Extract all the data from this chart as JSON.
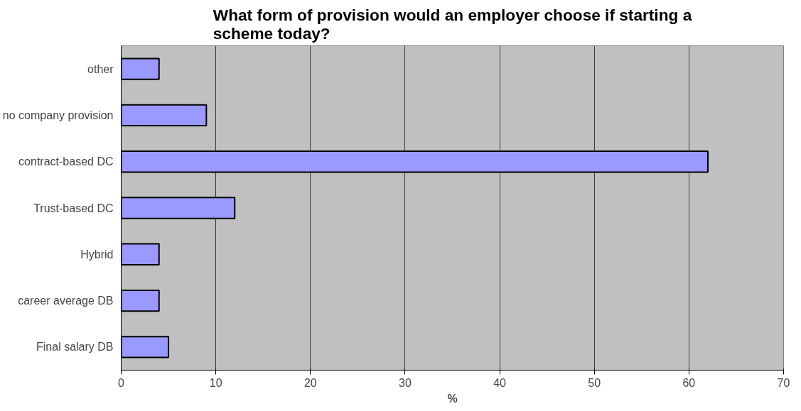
{
  "chart_data": {
    "type": "bar",
    "orientation": "horizontal",
    "title": "What form of provision would an employer choose if starting a scheme today?",
    "xlabel": "%",
    "categories": [
      "other",
      "no company provision",
      "contract-based DC",
      "Trust-based DC",
      "Hybrid",
      "career average DB",
      "Final salary DB"
    ],
    "values": [
      4,
      9,
      62,
      12,
      4,
      4,
      5
    ],
    "color": "#9999ff",
    "xlim": [
      0,
      70
    ],
    "xticks": [
      0,
      10,
      20,
      30,
      40,
      50,
      60,
      70
    ],
    "grid": "x"
  }
}
